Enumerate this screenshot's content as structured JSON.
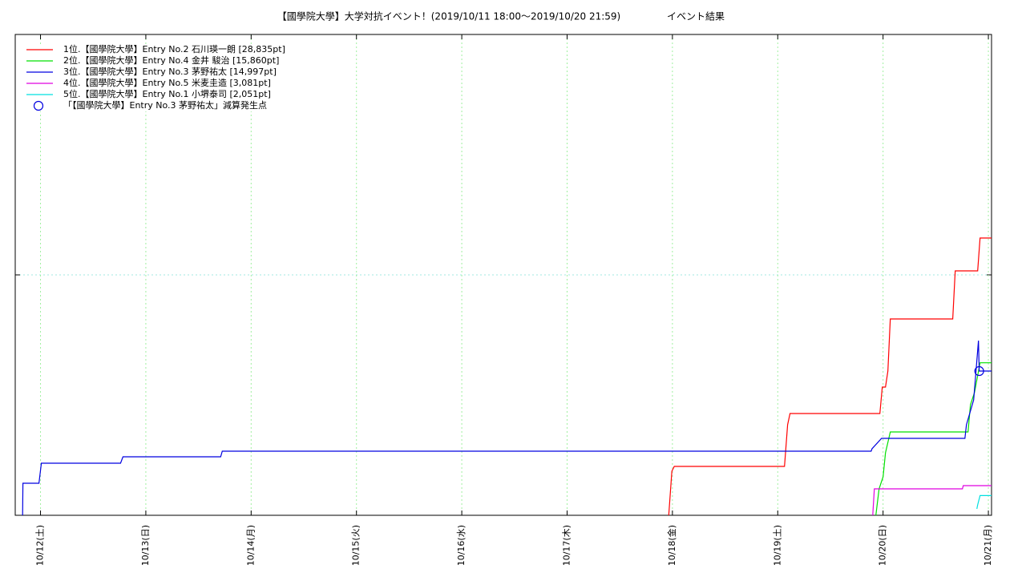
{
  "chart_data": {
    "type": "line",
    "title": "【國學院大學】大学対抗イベント！(2019/10/11 18:00～2019/10/20 21:59)",
    "subtitle": "イベント結果",
    "xlim": [
      11.76,
      21.03
    ],
    "xticks": [
      {
        "value": 12,
        "label": "10/12(土)"
      },
      {
        "value": 13,
        "label": "10/13(日)"
      },
      {
        "value": 14,
        "label": "10/14(月)"
      },
      {
        "value": 15,
        "label": "10/15(火)"
      },
      {
        "value": 16,
        "label": "10/16(水)"
      },
      {
        "value": 17,
        "label": "10/17(木)"
      },
      {
        "value": 18,
        "label": "10/18(金)"
      },
      {
        "value": 19,
        "label": "10/19(土)"
      },
      {
        "value": 20,
        "label": "10/20(日)"
      },
      {
        "value": 21,
        "label": "10/21(月)"
      }
    ],
    "ylim": [
      0,
      50000
    ],
    "yticks": [
      25000
    ],
    "grid": true,
    "legend": "top-left",
    "series": [
      {
        "name": "1位.【國學院大學】Entry No.2 石川瑛一朗 [28,835pt]",
        "color": "#ff0000",
        "style": "line",
        "x": [
          17.965,
          17.995,
          18.018,
          19.064,
          19.094,
          19.117,
          19.97,
          19.993,
          20.023,
          20.046,
          20.069,
          20.662,
          20.685,
          20.898,
          20.921,
          21.03
        ],
        "values": [
          0,
          4583,
          5083,
          5083,
          9417,
          10583,
          10583,
          13333,
          13333,
          15000,
          20417,
          20417,
          25417,
          25417,
          28835,
          28835
        ]
      },
      {
        "name": "2位.【國學院大學】Entry No.4 金井 駿治 [15,860pt]",
        "color": "#00e000",
        "style": "line",
        "x": [
          19.932,
          19.962,
          20.0,
          20.023,
          20.069,
          20.807,
          20.83,
          20.868,
          20.921,
          21.03
        ],
        "values": [
          0,
          2750,
          4000,
          6500,
          8667,
          8667,
          11500,
          12750,
          15860,
          15860
        ]
      },
      {
        "name": "3位.【國學院大學】Entry No.3 茅野祐太 [14,997pt]",
        "color": "#0000e0",
        "style": "line",
        "x": [
          11.83,
          11.833,
          11.985,
          12.008,
          12.76,
          12.783,
          13.711,
          13.726,
          19.887,
          19.895,
          19.986,
          20.777,
          20.792,
          20.86,
          20.906,
          20.913,
          21.03
        ],
        "values": [
          0,
          3333,
          3333,
          5417,
          5417,
          6083,
          6083,
          6667,
          6667,
          6917,
          8000,
          8000,
          9417,
          12000,
          18167,
          14997,
          14997
        ]
      },
      {
        "name": "4位.【國學院大學】Entry No.5 米麦圭造 [3,081pt]",
        "color": "#e000e0",
        "style": "line",
        "x": [
          19.902,
          19.917,
          20.754,
          20.761,
          21.03
        ],
        "values": [
          0,
          2750,
          2750,
          3081,
          3081
        ]
      },
      {
        "name": "5位.【國學院大學】Entry No.1 小堺泰司 [2,051pt]",
        "color": "#00e0e0",
        "style": "line",
        "x": [
          20.891,
          20.898,
          20.921,
          21.03
        ],
        "values": [
          667,
          1083,
          2051,
          2051
        ]
      },
      {
        "name": "「【國學院大學】Entry No.3 茅野祐太」減算発生点",
        "color": "#0000e0",
        "style": "points",
        "x": [
          20.913
        ],
        "values": [
          14997
        ]
      }
    ]
  }
}
